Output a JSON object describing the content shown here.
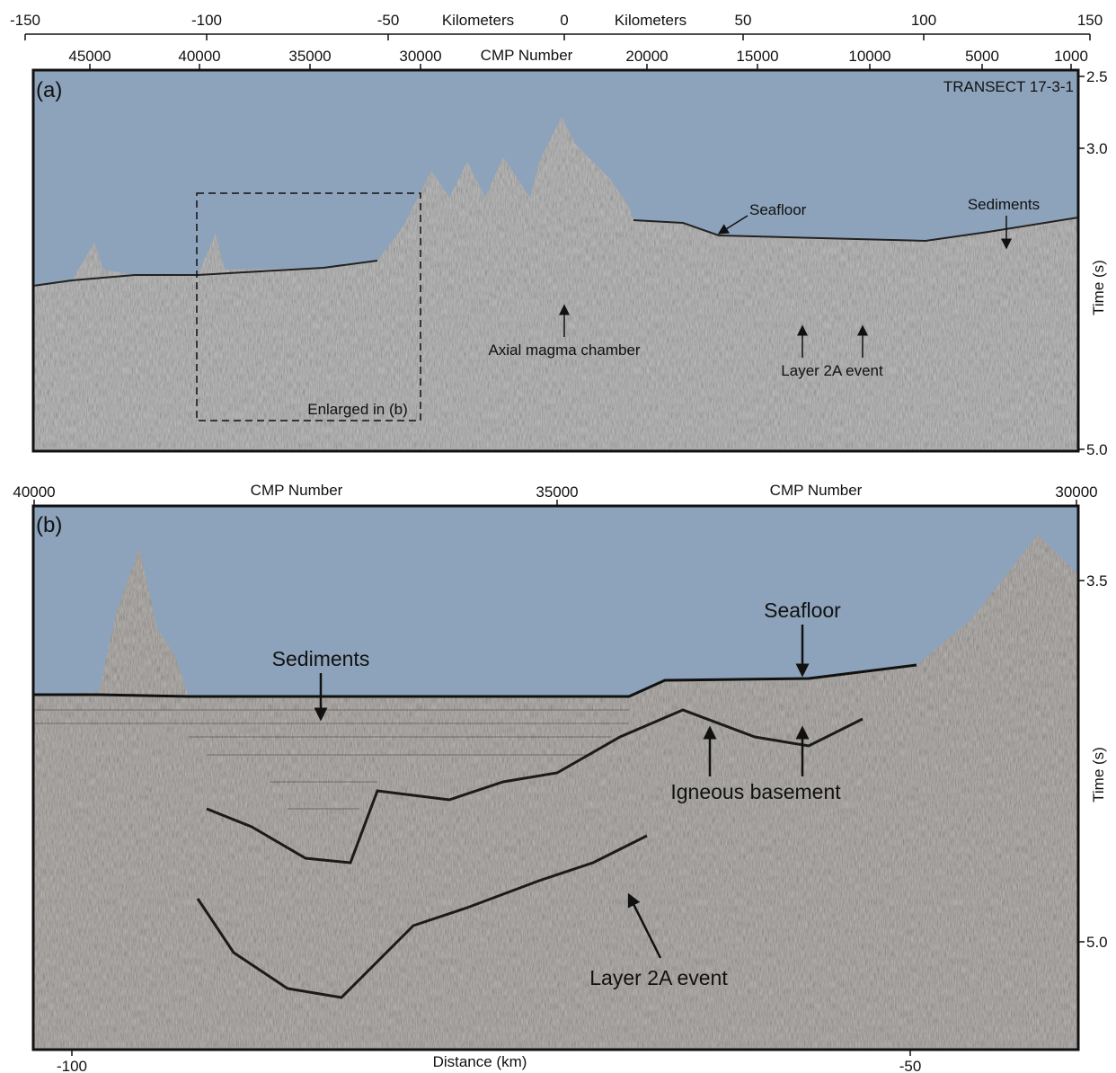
{
  "panel_a": {
    "label": "(a)",
    "transect": "TRANSECT 17-3-1",
    "km_axis": {
      "label": "Kilometers",
      "ticks": [
        "-150",
        "-100",
        "-50",
        "0",
        "50",
        "100",
        "150"
      ]
    },
    "cmp_axis": {
      "label": "CMP Number",
      "ticks": [
        "45000",
        "40000",
        "35000",
        "30000",
        "20000",
        "15000",
        "10000",
        "5000",
        "1000"
      ]
    },
    "time_axis": {
      "label": "Time (s)",
      "ticks": [
        "2.5",
        "3.0",
        "5.0"
      ]
    },
    "annotations": {
      "seafloor": "Seafloor",
      "sediments": "Sediments",
      "magma": "Axial magma chamber",
      "layer2a": "Layer 2A event",
      "enlarged": "Enlarged in (b)"
    }
  },
  "panel_b": {
    "label": "(b)",
    "cmp_axis": {
      "label": "CMP Number",
      "ticks": [
        "40000",
        "35000",
        "30000"
      ]
    },
    "time_axis": {
      "label": "Time (s)",
      "ticks": [
        "3.5",
        "5.0"
      ]
    },
    "distance_axis": {
      "label": "Distance (km)",
      "ticks": [
        "-100",
        "-50"
      ]
    },
    "annotations": {
      "sediments": "Sediments",
      "seafloor": "Seafloor",
      "basement": "Igneous basement",
      "layer2a": "Layer 2A event"
    }
  }
}
